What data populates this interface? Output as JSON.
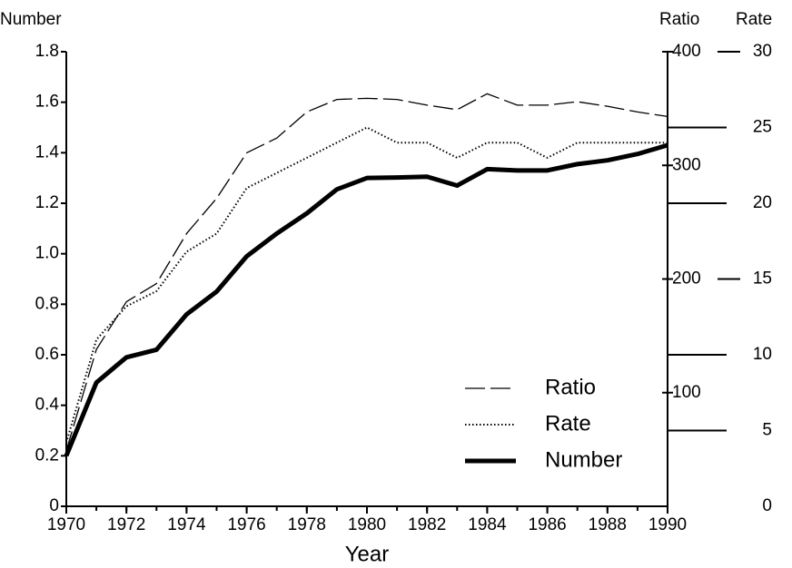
{
  "chart_data": {
    "type": "line",
    "y_label": "Number",
    "y2_label": "Ratio",
    "y3_label": "Rate",
    "x_label": "Year",
    "x": [
      1970,
      1971,
      1972,
      1973,
      1974,
      1975,
      1976,
      1977,
      1978,
      1979,
      1980,
      1981,
      1982,
      1983,
      1984,
      1985,
      1986,
      1987,
      1988,
      1989,
      1990
    ],
    "xlim": [
      1970,
      1990
    ],
    "xticks": [
      1970,
      1972,
      1974,
      1976,
      1978,
      1980,
      1982,
      1984,
      1986,
      1988,
      1990
    ],
    "ylim": [
      0,
      1.8
    ],
    "yticks": [
      0,
      0.2,
      0.4,
      0.6,
      0.8,
      {
        "value": 1,
        "label": "1.0"
      },
      1.2,
      1.4,
      1.6,
      1.8
    ],
    "y2lim": [
      0,
      400
    ],
    "y2ticks": [
      100,
      200,
      300,
      400
    ],
    "y3lim": [
      0,
      30
    ],
    "y3ticks": [
      0,
      5,
      10,
      15,
      20,
      25,
      30
    ],
    "legend": "lower center",
    "series": [
      {
        "name": "Ratio",
        "color": "#000",
        "style": "dashed",
        "axis": "y2",
        "values": [
          49,
          138,
          180,
          196,
          240,
          271,
          311,
          324,
          347,
          358,
          359,
          358,
          353,
          349,
          363,
          353,
          353,
          356,
          352,
          347,
          343
        ]
      },
      {
        "name": "Rate",
        "color": "#000",
        "style": "dotted",
        "axis": "y3",
        "values": [
          4.2,
          11,
          13.2,
          14.2,
          16.8,
          18,
          21,
          22,
          23,
          24,
          25,
          24,
          24,
          23,
          24,
          24,
          23,
          24,
          24,
          24,
          24
        ]
      },
      {
        "name": "Number",
        "color": "#000",
        "style": "thick",
        "axis": "y",
        "values": [
          0.2,
          0.49,
          0.59,
          0.62,
          0.76,
          0.85,
          0.99,
          1.08,
          1.16,
          1.255,
          1.3,
          1.302,
          1.305,
          1.27,
          1.335,
          1.33,
          1.33,
          1.355,
          1.37,
          1.395,
          1.43
        ]
      }
    ]
  }
}
